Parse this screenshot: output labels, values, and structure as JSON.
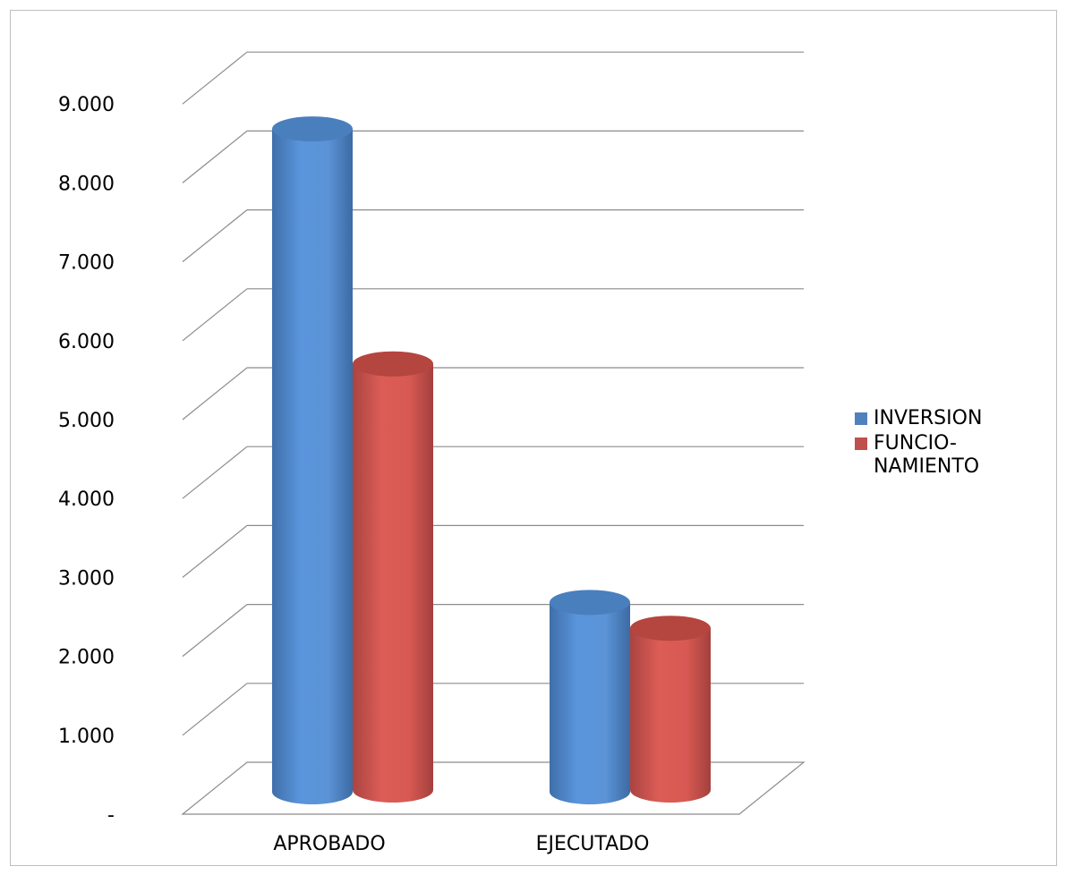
{
  "chart_data": {
    "type": "bar",
    "style": "3d-cylinder",
    "categories": [
      "APROBADO",
      "EJECUTADO"
    ],
    "series": [
      {
        "name": "INVERSION",
        "color": "#4f81bd",
        "values": [
          8400,
          2400
        ]
      },
      {
        "name": "FUNCIO-\nNAMIENTO",
        "color": "#c0504d",
        "values": [
          5400,
          2050
        ]
      }
    ],
    "y_ticks": [
      "-",
      "1.000",
      "2.000",
      "3.000",
      "4.000",
      "5.000",
      "6.000",
      "7.000",
      "8.000",
      "9.000"
    ],
    "ylim": [
      0,
      9000
    ],
    "grid": true,
    "legend_position": "right",
    "title": "",
    "xlabel": "",
    "ylabel": ""
  }
}
